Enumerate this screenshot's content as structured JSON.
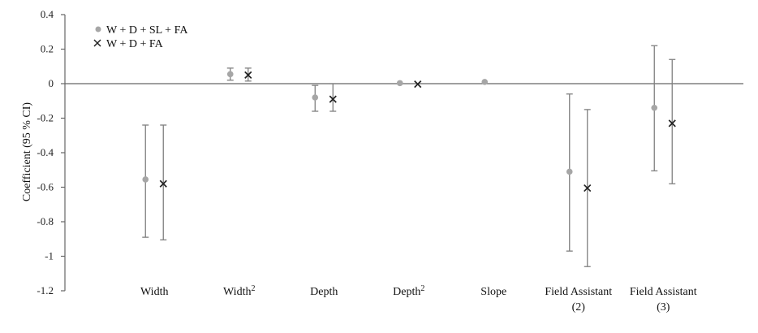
{
  "chart_data": {
    "type": "scatter",
    "title": "",
    "ylabel": "Coefficient (95 % CI)",
    "xlabel": "",
    "ylim": [
      -1.2,
      0.4
    ],
    "yticks": [
      0.4,
      0.2,
      0,
      -0.2,
      -0.4,
      -0.6,
      -0.8,
      -1,
      -1.2
    ],
    "ytick_labels": [
      "0.4",
      "0.2",
      "0",
      "-0.2",
      "-0.4",
      "-0.6",
      "-0.8",
      "-1",
      "-1.2"
    ],
    "categories": [
      {
        "label": "Width",
        "sup": "",
        "line2": ""
      },
      {
        "label": "Width",
        "sup": "2",
        "line2": ""
      },
      {
        "label": "Depth",
        "sup": "",
        "line2": ""
      },
      {
        "label": "Depth",
        "sup": "2",
        "line2": ""
      },
      {
        "label": "Slope",
        "sup": "",
        "line2": ""
      },
      {
        "label": "Field Assistant",
        "sup": "",
        "line2": "(2)"
      },
      {
        "label": "Field Assistant",
        "sup": "",
        "line2": "(3)"
      }
    ],
    "series": [
      {
        "name": "W + D + SL + FA",
        "marker": "circle",
        "color": "#a6a6a6",
        "values": [
          -0.555,
          0.055,
          -0.08,
          0.003,
          0.01,
          -0.51,
          -0.14
        ],
        "ci_low": [
          -0.89,
          0.02,
          -0.16,
          0.0,
          0.005,
          -0.97,
          -0.505
        ],
        "ci_high": [
          -0.24,
          0.09,
          -0.01,
          0.006,
          0.015,
          -0.06,
          0.22
        ]
      },
      {
        "name": "W + D + FA",
        "marker": "x",
        "color": "#222222",
        "values": [
          -0.58,
          0.05,
          -0.09,
          -0.003,
          null,
          -0.605,
          -0.23
        ],
        "ci_low": [
          -0.905,
          0.015,
          -0.16,
          -0.006,
          null,
          -1.06,
          -0.58
        ],
        "ci_high": [
          -0.24,
          0.09,
          0.0,
          0.0,
          null,
          -0.15,
          0.14
        ]
      }
    ],
    "legend_position": "top-left",
    "grid": false,
    "colors": {
      "axis": "#666666",
      "errorbar": "#808080"
    }
  }
}
